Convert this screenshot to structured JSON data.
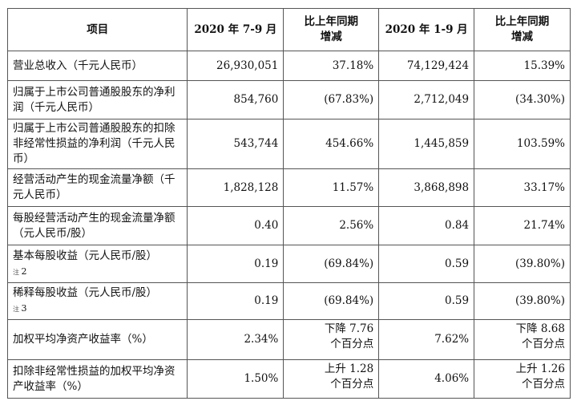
{
  "headers": [
    "项目",
    "2020 年 7-9 月",
    "比上年同期增减",
    "2020 年 1-9 月",
    "比上年同期增减"
  ],
  "rows": [
    {
      "item": "营业总收入（千元人民币）",
      "q3": "26,930,051",
      "q3_change": "37.18%",
      "ytd": "74,129,424",
      "ytd_change": "15.39%"
    },
    {
      "item": "归属于上市公司普通股股东的净利润（千元人民币）",
      "q3": "854,760",
      "q3_change": "(67.83%)",
      "ytd": "2,712,049",
      "ytd_change": "(34.30%)"
    },
    {
      "item": "归属于上市公司普通股股东的扣除非经常性损益的净利润（千元人民币）",
      "q3": "543,744",
      "q3_change": "454.66%",
      "ytd": "1,445,859",
      "ytd_change": "103.59%"
    },
    {
      "item": "经营活动产生的现金流量净额（千元人民币）",
      "q3": "1,828,128",
      "q3_change": "11.57%",
      "ytd": "3,868,898",
      "ytd_change": "33.17%"
    },
    {
      "item": "每股经营活动产生的现金流量净额（元人民币/股）",
      "q3": "0.40",
      "q3_change": "2.56%",
      "ytd": "0.84",
      "ytd_change": "21.74%"
    },
    {
      "item": "基本每股收益（元人民币/股）",
      "note": "注",
      "note_num": "2",
      "q3": "0.19",
      "q3_change": "(69.84%)",
      "ytd": "0.59",
      "ytd_change": "(39.80%)"
    },
    {
      "item": "稀释每股收益（元人民币/股）",
      "note": "注",
      "note_num": "3",
      "q3": "0.19",
      "q3_change": "(69.84%)",
      "ytd": "0.59",
      "ytd_change": "(39.80%)"
    },
    {
      "item": "加权平均净资产收益率（%）",
      "q3": "2.34%",
      "q3_change": "下降 7.76 个百分点",
      "ytd": "7.62%",
      "ytd_change": "下降 8.68 个百分点"
    },
    {
      "item": "扣除非经常性损益的加权平均净资产收益率（%）",
      "q3": "1.50%",
      "q3_change": "上升 1.28 个百分点",
      "ytd": "4.06%",
      "ytd_change": "上升 1.26 个百分点"
    }
  ]
}
